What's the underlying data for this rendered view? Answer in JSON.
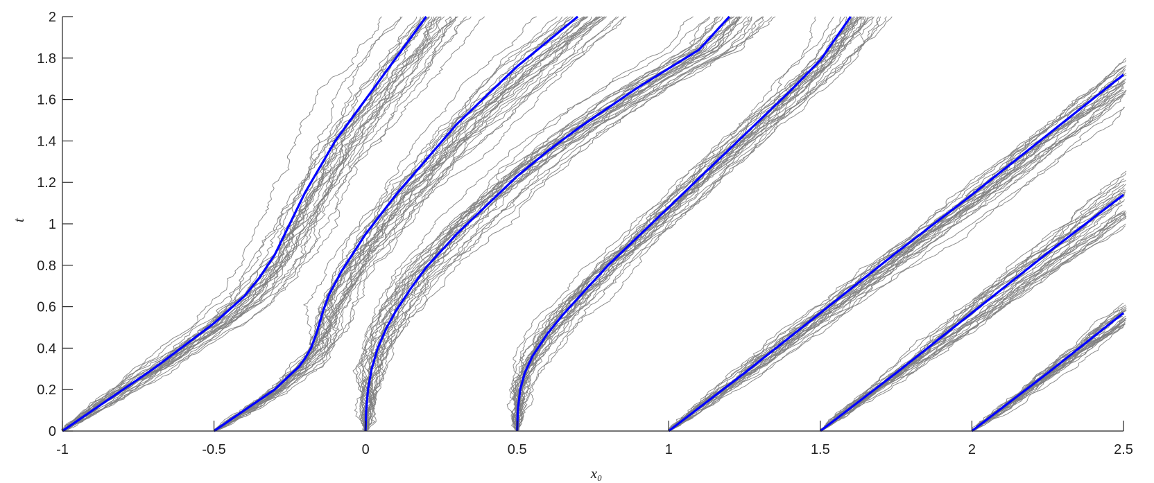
{
  "chart_data": {
    "type": "line",
    "title": "",
    "xlabel": "x₀",
    "ylabel": "t",
    "xlim": [
      -1,
      2.5
    ],
    "ylim": [
      0,
      2
    ],
    "grid": false,
    "xticks": [
      "-1",
      "-0.5",
      "0",
      "0.5",
      "1",
      "1.5",
      "2",
      "2.5"
    ],
    "yticks": [
      "0",
      "0.2",
      "0.4",
      "0.6",
      "0.8",
      "1",
      "1.2",
      "1.4",
      "1.6",
      "1.8",
      "2"
    ],
    "colors": {
      "characteristic": "#0000ff",
      "stochastic": "#808080"
    },
    "series": [
      {
        "x": [
          -1,
          -0.9,
          -0.8,
          -0.7,
          -0.6,
          -0.5,
          -0.4,
          -0.35,
          -0.3,
          -0.25,
          -0.2,
          -0.1,
          0.0,
          0.1,
          0.2
        ],
        "y": [
          0,
          0.1,
          0.2,
          0.3,
          0.41,
          0.52,
          0.65,
          0.74,
          0.85,
          1.0,
          1.15,
          1.4,
          1.6,
          1.8,
          2.0
        ]
      },
      {
        "x": [
          -0.5,
          -0.4,
          -0.3,
          -0.25,
          -0.22,
          -0.2,
          -0.18,
          -0.16,
          -0.14,
          -0.12,
          -0.08,
          0.0,
          0.1,
          0.2,
          0.3,
          0.4,
          0.5,
          0.6,
          0.7
        ],
        "y": [
          0,
          0.1,
          0.2,
          0.27,
          0.31,
          0.35,
          0.4,
          0.48,
          0.58,
          0.66,
          0.77,
          0.95,
          1.14,
          1.31,
          1.48,
          1.62,
          1.76,
          1.88,
          2.0
        ]
      },
      {
        "x": [
          0,
          0.002,
          0.008,
          0.02,
          0.04,
          0.07,
          0.1,
          0.15,
          0.2,
          0.3,
          0.4,
          0.5,
          0.6,
          0.7,
          0.8,
          0.9,
          1.0,
          1.1,
          1.2
        ],
        "y": [
          0,
          0.1,
          0.2,
          0.3,
          0.4,
          0.5,
          0.58,
          0.69,
          0.79,
          0.95,
          1.09,
          1.23,
          1.35,
          1.46,
          1.56,
          1.66,
          1.75,
          1.84,
          2.0
        ]
      },
      {
        "x": [
          0.5,
          0.502,
          0.51,
          0.525,
          0.55,
          0.6,
          0.65,
          0.7,
          0.8,
          0.9,
          1.0,
          1.1,
          1.2,
          1.3,
          1.4,
          1.5,
          1.6
        ],
        "y": [
          0,
          0.1,
          0.2,
          0.28,
          0.36,
          0.47,
          0.56,
          0.64,
          0.8,
          0.94,
          1.08,
          1.22,
          1.36,
          1.5,
          1.64,
          1.79,
          2.0
        ]
      },
      {
        "x": [
          1,
          1.25,
          1.5,
          1.75,
          2.0,
          2.25,
          2.5
        ],
        "y": [
          0,
          0.28,
          0.57,
          0.86,
          1.14,
          1.43,
          1.72
        ]
      },
      {
        "x": [
          1.5,
          1.75,
          2.0,
          2.25,
          2.5
        ],
        "y": [
          0,
          0.28,
          0.57,
          0.86,
          1.14
        ]
      },
      {
        "x": [
          2.0,
          2.25,
          2.5
        ],
        "y": [
          0,
          0.28,
          0.57
        ]
      }
    ]
  }
}
